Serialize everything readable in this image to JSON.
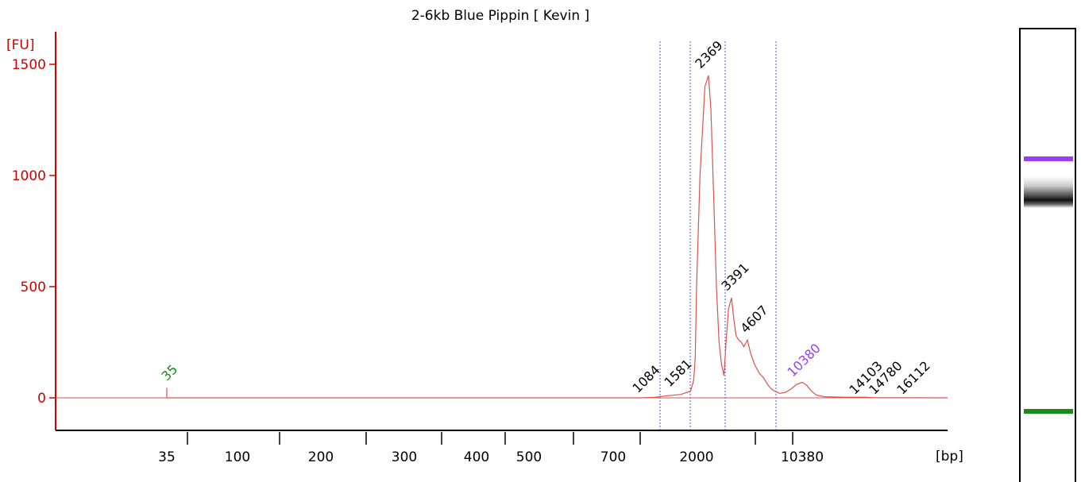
{
  "chart_data": {
    "type": "line",
    "title": "2-6kb Blue Pippin  [ Kevin ]",
    "ylabel": "[FU]",
    "xlabel": "[bp]",
    "ylim": [
      -150,
      1550
    ],
    "y_ticks": [
      "0",
      "500",
      "1000",
      "1500"
    ],
    "x_ticks": [
      "35",
      "100",
      "200",
      "300",
      "400",
      "500",
      "700",
      "2000",
      "10380"
    ],
    "region_markers_bp": [
      1084,
      1581,
      3000,
      8000
    ],
    "peaks": [
      {
        "label": "35",
        "bp": 35,
        "fu": 45,
        "color": "#1a8a1a"
      },
      {
        "label": "1084",
        "bp": 1084,
        "fu": 5,
        "color": "#000000"
      },
      {
        "label": "1581",
        "bp": 1581,
        "fu": 25,
        "color": "#000000"
      },
      {
        "label": "2369",
        "bp": 2369,
        "fu": 1450,
        "color": "#000000"
      },
      {
        "label": "3391",
        "bp": 3391,
        "fu": 450,
        "color": "#000000"
      },
      {
        "label": "4607",
        "bp": 4607,
        "fu": 260,
        "color": "#000000"
      },
      {
        "label": "10380",
        "bp": 10380,
        "fu": 70,
        "color": "#9b3df0"
      },
      {
        "label": "14103",
        "bp": 14103,
        "fu": 5,
        "color": "#000000"
      },
      {
        "label": "14780",
        "bp": 14780,
        "fu": 5,
        "color": "#000000"
      },
      {
        "label": "16112",
        "bp": 16112,
        "fu": 5,
        "color": "#000000"
      }
    ],
    "trace_points": [
      [
        35,
        0
      ],
      [
        35,
        45
      ],
      [
        35,
        0
      ],
      [
        800,
        0
      ],
      [
        1000,
        2
      ],
      [
        1200,
        10
      ],
      [
        1400,
        15
      ],
      [
        1600,
        30
      ],
      [
        1800,
        80
      ],
      [
        1900,
        180
      ],
      [
        2000,
        500
      ],
      [
        2100,
        1000
      ],
      [
        2250,
        1400
      ],
      [
        2369,
        1450
      ],
      [
        2450,
        1300
      ],
      [
        2550,
        900
      ],
      [
        2650,
        500
      ],
      [
        2750,
        250
      ],
      [
        2850,
        150
      ],
      [
        2950,
        100
      ],
      [
        3050,
        250
      ],
      [
        3200,
        400
      ],
      [
        3391,
        450
      ],
      [
        3550,
        350
      ],
      [
        3700,
        280
      ],
      [
        3900,
        260
      ],
      [
        4100,
        250
      ],
      [
        4300,
        230
      ],
      [
        4607,
        260
      ],
      [
        4900,
        200
      ],
      [
        5300,
        150
      ],
      [
        5800,
        110
      ],
      [
        6300,
        90
      ],
      [
        6800,
        60
      ],
      [
        7300,
        40
      ],
      [
        7800,
        30
      ],
      [
        8300,
        20
      ],
      [
        8800,
        25
      ],
      [
        9300,
        40
      ],
      [
        9800,
        60
      ],
      [
        10380,
        70
      ],
      [
        10900,
        55
      ],
      [
        11400,
        30
      ],
      [
        12000,
        12
      ],
      [
        13000,
        5
      ],
      [
        14103,
        4
      ],
      [
        14780,
        3
      ],
      [
        16112,
        3
      ],
      [
        17000,
        1
      ],
      [
        30000,
        0
      ]
    ],
    "colors": {
      "axis": "#d40000",
      "trace": "#d9534f",
      "marker": "#5555dd",
      "lower_marker": "#1a8a1a",
      "upper_marker": "#9b3df0"
    }
  },
  "gel": {
    "upper_marker_color": "#9b3df0",
    "lower_marker_color": "#1a8a1a",
    "main_band_color": "#111111"
  }
}
